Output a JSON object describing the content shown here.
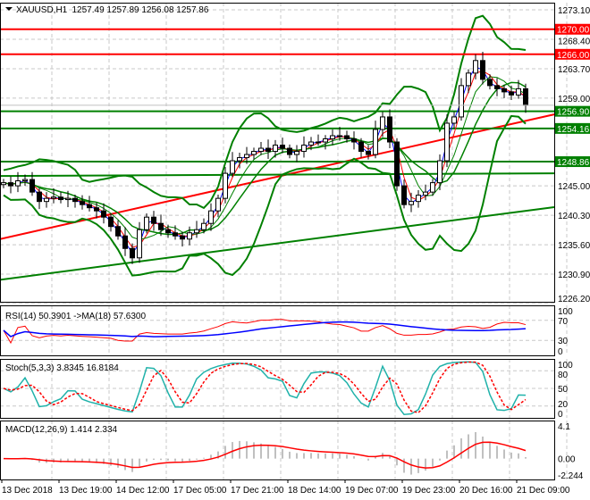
{
  "header": {
    "symbol": "XAUUSD,H1",
    "ohlc": "1257.49 1257.89 1256.08 1257.86"
  },
  "rsi_label": "RSI(14) 50.3901  ->MA(18) 57.6300",
  "stoch_label": "Stoch(5,3,3) 3.8345 16.8184",
  "macd_label": "MACD(12,26,9) 1.414 2.334",
  "chart_data": {
    "type": "candlestick",
    "title": "XAUUSD,H1",
    "ylim": [
      1226.2,
      1276
    ],
    "price_ticks": [
      "1273.10",
      "1268.40",
      "1263.70",
      "1259.00",
      "1245.00",
      "1240.30",
      "1235.60",
      "1230.90",
      "1226.20"
    ],
    "time_ticks": [
      "13 Dec 2018",
      "13 Dec 19:00",
      "14 Dec 12:00",
      "17 Dec 05:00",
      "17 Dec 21:00",
      "18 Dec 14:00",
      "19 Dec 07:00",
      "19 Dec 23:00",
      "20 Dec 16:00",
      "21 Dec 09:00"
    ],
    "close": [
      1245.5,
      1245,
      1245.8,
      1246,
      1244,
      1242.5,
      1243,
      1243.2,
      1242.8,
      1243,
      1242.5,
      1242,
      1241.5,
      1241,
      1240,
      1238.5,
      1237,
      1235,
      1233.5,
      1238,
      1240,
      1239,
      1238,
      1237.5,
      1237,
      1236.5,
      1237.5,
      1238,
      1239,
      1241,
      1243,
      1247,
      1249,
      1249.5,
      1250,
      1250.5,
      1251,
      1250.5,
      1251.5,
      1251,
      1250,
      1250.5,
      1251.5,
      1252,
      1252,
      1252.5,
      1253,
      1253,
      1252.5,
      1252,
      1250.5,
      1250,
      1254,
      1256,
      1252,
      1245,
      1242,
      1242.5,
      1243.5,
      1244,
      1245.5,
      1249,
      1255,
      1256,
      1261,
      1263,
      1265,
      1262,
      1261,
      1260.5,
      1260,
      1259.5,
      1260.5,
      1257.86
    ],
    "levels": [
      {
        "price": 1270.0,
        "label": "1270.00",
        "color": "#ff0000"
      },
      {
        "price": 1266.0,
        "label": "1266.00",
        "color": "#ff0000"
      },
      {
        "price": 1256.9,
        "label": "1256.90",
        "color": "#008000"
      },
      {
        "price": 1254.16,
        "label": "1254.16",
        "color": "#008000"
      },
      {
        "price": 1248.86,
        "label": "1248.86",
        "color": "#008000"
      }
    ],
    "trendlines": [
      {
        "from": 1236.5,
        "to": 1256.4,
        "color": "#ff0000"
      },
      {
        "from": 1230.0,
        "to": 1241.6,
        "color": "#008000"
      }
    ],
    "current_price": "1257.86",
    "rsi_ticks": [
      "100",
      "70",
      "30",
      "0"
    ],
    "stoch_ticks": [
      "100",
      "80",
      "50",
      "20",
      "0"
    ],
    "macd_ticks": [
      "4.1",
      "0.00",
      "-2.244"
    ],
    "macd_ylim": [
      -2.244,
      4.1
    ],
    "colors": {
      "bull": "#000000",
      "bear": "#000000",
      "bands": "#008000",
      "rsi": "#ff0000",
      "rsi_ma": "#0000ff",
      "stoch_main": "#20b2aa",
      "stoch_signal": "#ff0000",
      "macd_hist": "#c0c0c0",
      "macd_signal": "#ff0000"
    }
  }
}
